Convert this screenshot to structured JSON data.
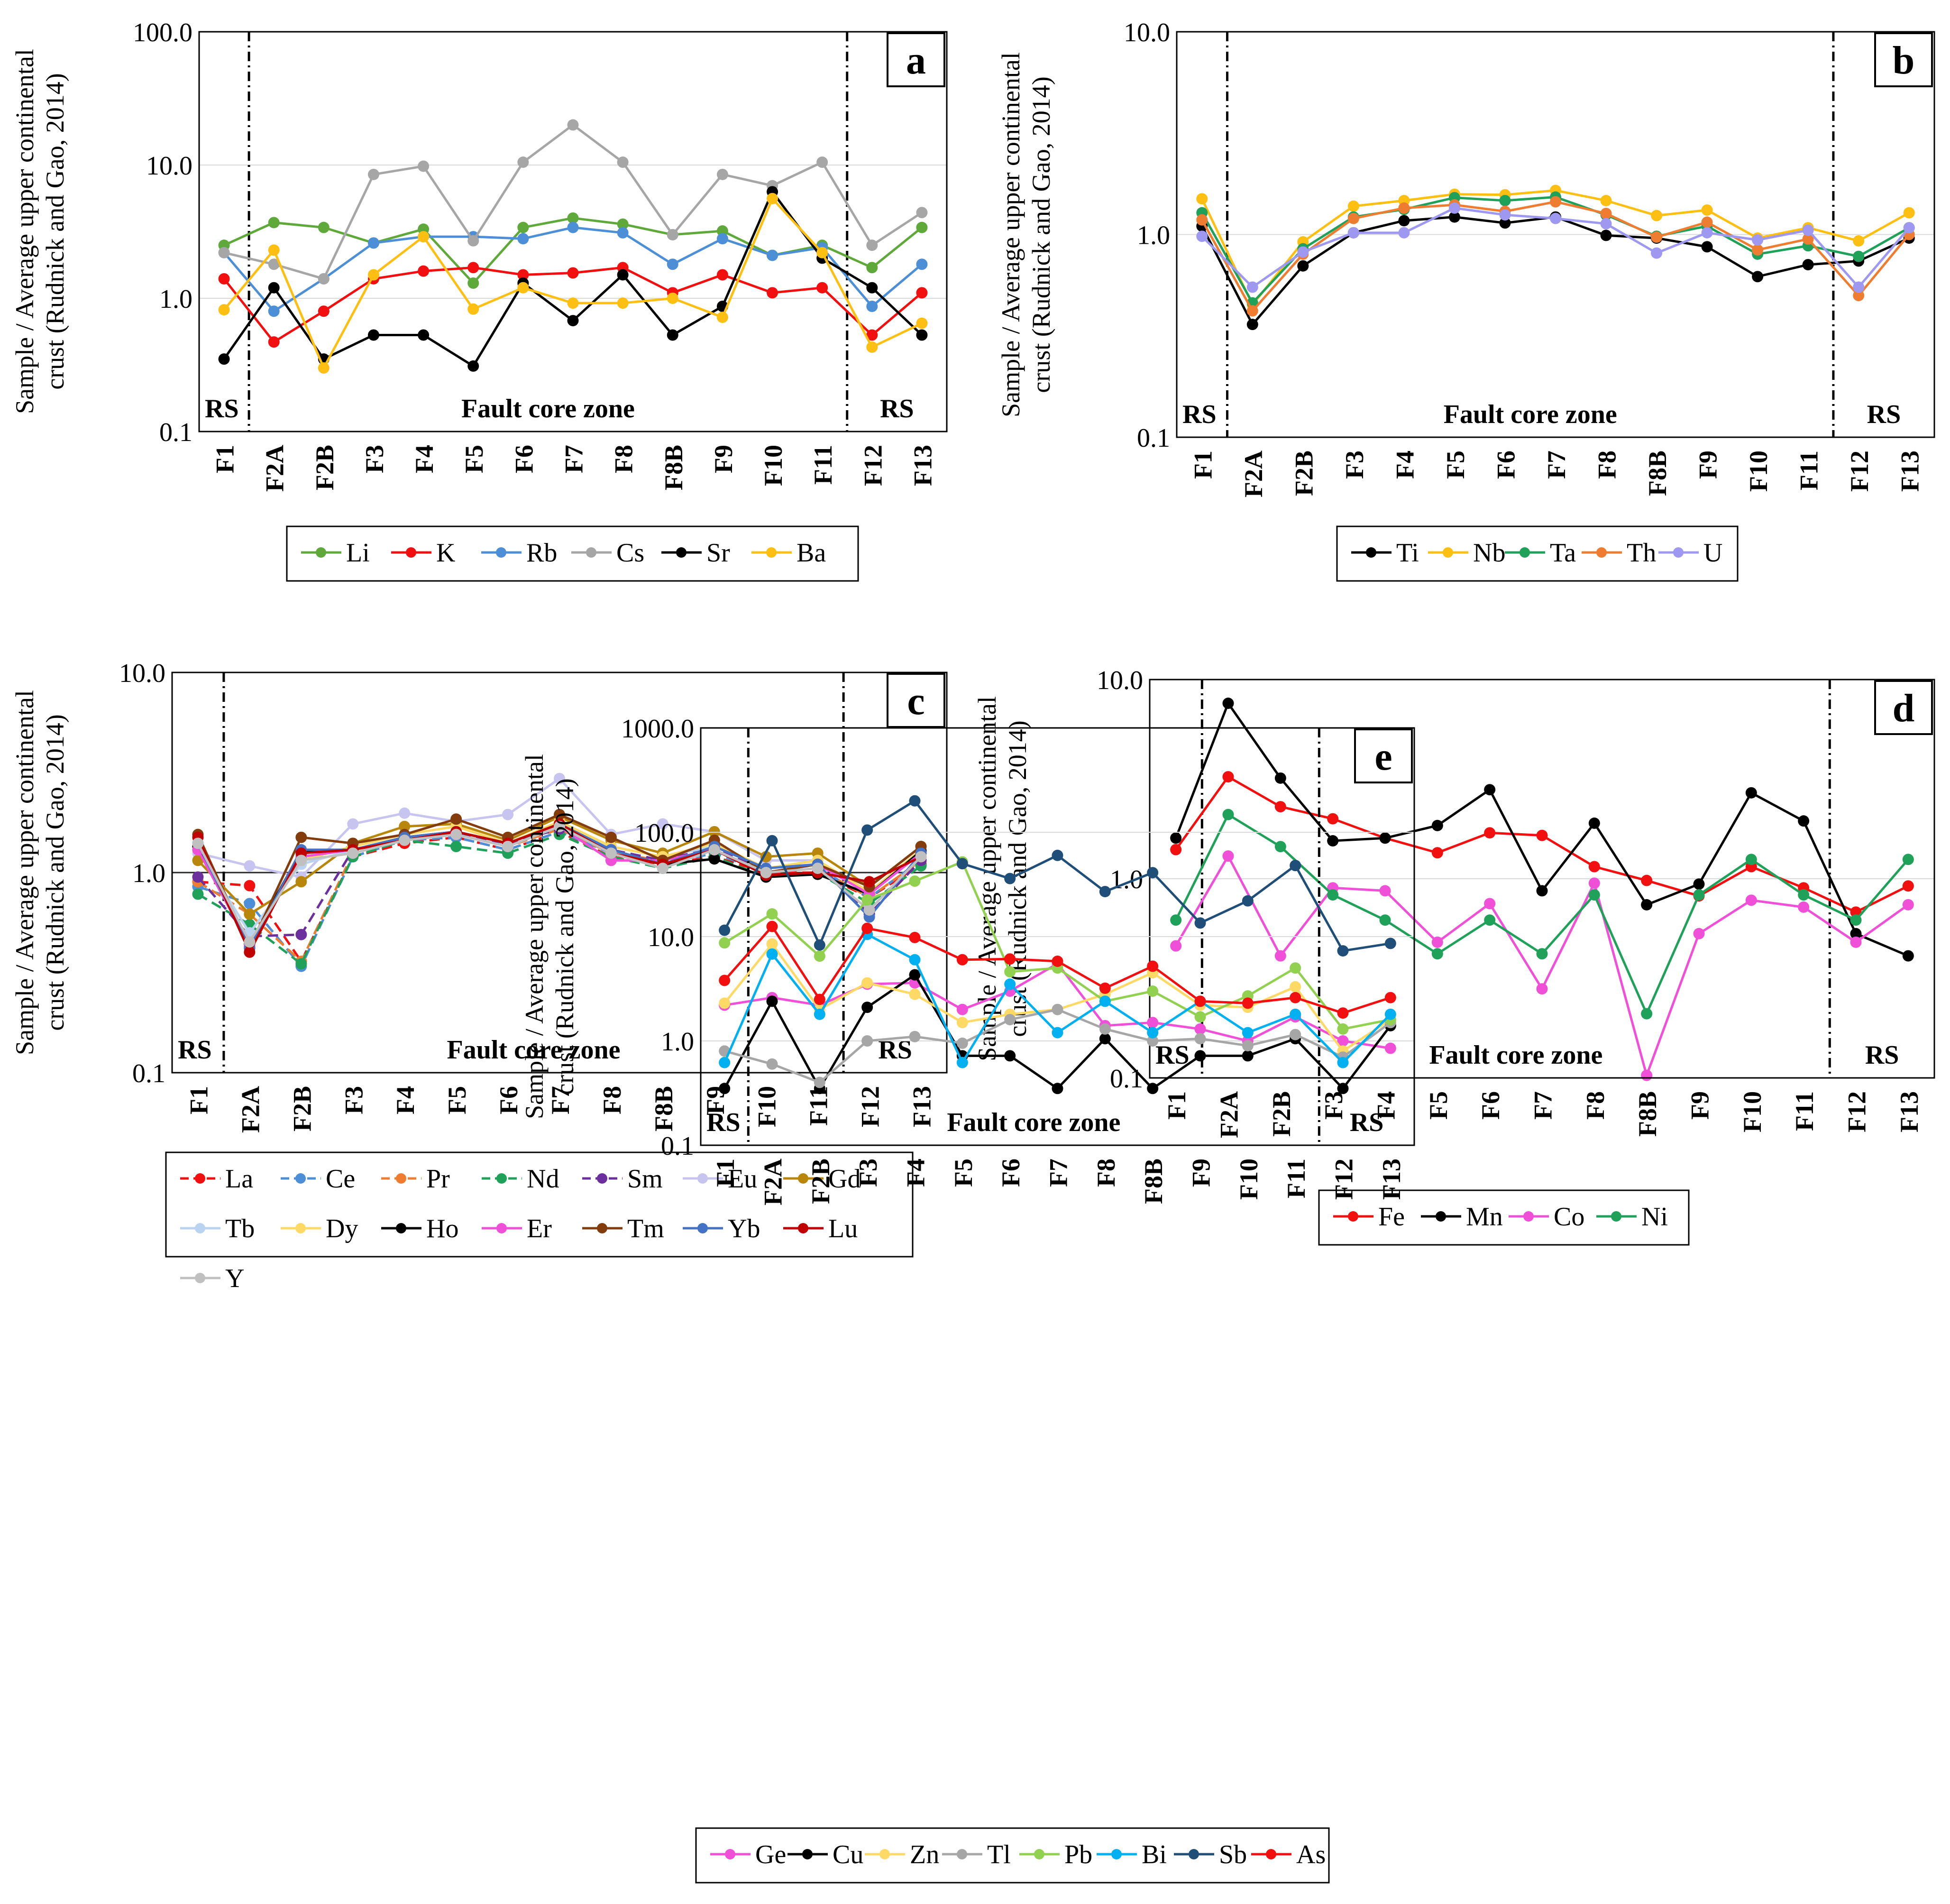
{
  "figure": {
    "ylabel_line1": "Sample / Average upper continental",
    "ylabel_line2": "crust (Rudnick and Gao, 2014)",
    "zone_left": "RS",
    "zone_middle": "Fault core zone",
    "zone_right": "RS"
  },
  "chart_data": [
    {
      "id": "a",
      "panel_label": "a",
      "type": "line",
      "scale": "log",
      "ylim": [
        0.1,
        100
      ],
      "ytick_labels": [
        "0.1",
        "1.0",
        "10.0",
        "100.0"
      ],
      "categories": [
        "F1",
        "F2A",
        "F2B",
        "F3",
        "F4",
        "F5",
        "F6",
        "F7",
        "F8",
        "F8B",
        "F9",
        "F10",
        "F11",
        "F12",
        "F13"
      ],
      "separators_after": [
        "F1",
        "F11"
      ],
      "series": [
        {
          "name": "Li",
          "color": "#5fa83a",
          "values": [
            2.5,
            3.7,
            3.4,
            2.6,
            3.3,
            1.3,
            3.4,
            4.0,
            3.6,
            3.0,
            3.2,
            2.1,
            2.5,
            1.7,
            3.4
          ]
        },
        {
          "name": "K",
          "color": "#f20f0f",
          "values": [
            1.4,
            0.47,
            0.8,
            1.4,
            1.6,
            1.7,
            1.5,
            1.55,
            1.7,
            1.1,
            1.5,
            1.1,
            1.2,
            0.53,
            1.1
          ]
        },
        {
          "name": "Rb",
          "color": "#4d8fd6",
          "values": [
            2.2,
            0.8,
            1.4,
            2.6,
            2.9,
            2.9,
            2.8,
            3.4,
            3.1,
            1.8,
            2.8,
            2.1,
            2.4,
            0.87,
            1.8
          ]
        },
        {
          "name": "Cs",
          "color": "#a6a6a6",
          "values": [
            2.2,
            1.8,
            1.4,
            8.5,
            9.8,
            2.7,
            10.5,
            20.0,
            10.5,
            3.0,
            8.5,
            7.0,
            10.5,
            2.5,
            4.4
          ]
        },
        {
          "name": "Sr",
          "color": "#000000",
          "values": [
            0.35,
            1.2,
            0.35,
            0.53,
            0.53,
            0.31,
            1.3,
            0.68,
            1.5,
            0.53,
            0.87,
            6.3,
            2.0,
            1.2,
            0.53
          ]
        },
        {
          "name": "Ba",
          "color": "#fdbf12",
          "values": [
            0.82,
            2.3,
            0.3,
            1.5,
            2.9,
            0.83,
            1.2,
            0.92,
            0.92,
            1.0,
            0.72,
            5.6,
            2.2,
            0.43,
            0.65
          ]
        }
      ]
    },
    {
      "id": "b",
      "panel_label": "b",
      "type": "line",
      "scale": "log",
      "ylim": [
        0.1,
        10
      ],
      "ytick_labels": [
        "0.1",
        "1.0",
        "10.0"
      ],
      "categories": [
        "F1",
        "F2A",
        "F2B",
        "F3",
        "F4",
        "F5",
        "F6",
        "F7",
        "F8",
        "F8B",
        "F9",
        "F10",
        "F11",
        "F12",
        "F13"
      ],
      "separators_after": [
        "F1",
        "F11"
      ],
      "series": [
        {
          "name": "Ti",
          "color": "#000000",
          "values": [
            1.1,
            0.36,
            0.7,
            1.02,
            1.17,
            1.22,
            1.14,
            1.22,
            0.99,
            0.96,
            0.87,
            0.62,
            0.71,
            0.74,
            0.96
          ]
        },
        {
          "name": "Nb",
          "color": "#fdbf12",
          "values": [
            1.5,
            0.45,
            0.92,
            1.38,
            1.47,
            1.58,
            1.57,
            1.65,
            1.47,
            1.24,
            1.32,
            0.96,
            1.08,
            0.93,
            1.28
          ]
        },
        {
          "name": "Ta",
          "color": "#1fa15a",
          "values": [
            1.28,
            0.46,
            0.85,
            1.22,
            1.33,
            1.52,
            1.47,
            1.53,
            1.25,
            0.98,
            1.1,
            0.8,
            0.88,
            0.78,
            1.08
          ]
        },
        {
          "name": "Th",
          "color": "#ee7d31",
          "values": [
            1.18,
            0.42,
            0.8,
            1.2,
            1.35,
            1.4,
            1.3,
            1.45,
            1.27,
            0.97,
            1.15,
            0.84,
            0.95,
            0.5,
            1.0
          ]
        },
        {
          "name": "U",
          "color": "#9f98f0",
          "values": [
            0.98,
            0.55,
            0.82,
            1.02,
            1.02,
            1.35,
            1.25,
            1.2,
            1.13,
            0.81,
            1.02,
            0.94,
            1.05,
            0.55,
            1.08
          ]
        }
      ]
    },
    {
      "id": "c",
      "panel_label": "c",
      "type": "line",
      "scale": "log",
      "ylim": [
        0.1,
        10
      ],
      "ytick_labels": [
        "0.1",
        "1.0",
        "10.0"
      ],
      "categories": [
        "F1",
        "F2A",
        "F2B",
        "F3",
        "F4",
        "F5",
        "F6",
        "F7",
        "F8",
        "F8B",
        "F9",
        "F10",
        "F11",
        "F12",
        "F13"
      ],
      "separators_after": [
        "F1",
        "F11"
      ],
      "series": [
        {
          "name": "La",
          "color": "#f20f0f",
          "dashed": true,
          "values": [
            0.9,
            0.86,
            0.36,
            1.2,
            1.4,
            1.5,
            1.3,
            1.6,
            1.2,
            1.1,
            1.2,
            1.0,
            1.0,
            0.75,
            1.1
          ]
        },
        {
          "name": "Ce",
          "color": "#4d8fd6",
          "dashed": true,
          "values": [
            0.85,
            0.7,
            0.34,
            1.2,
            1.45,
            1.5,
            1.3,
            1.6,
            1.25,
            1.1,
            1.25,
            1.0,
            1.05,
            0.75,
            1.15
          ]
        },
        {
          "name": "Pr",
          "color": "#ee7d31",
          "dashed": true,
          "values": [
            0.9,
            0.62,
            0.36,
            1.25,
            1.45,
            1.55,
            1.35,
            1.65,
            1.25,
            1.15,
            1.3,
            1.0,
            1.05,
            0.75,
            1.15
          ]
        },
        {
          "name": "Nd",
          "color": "#1fa15a",
          "dashed": true,
          "values": [
            0.78,
            0.55,
            0.35,
            1.2,
            1.45,
            1.35,
            1.25,
            1.55,
            1.2,
            1.05,
            1.2,
            0.95,
            1.0,
            0.7,
            1.08
          ]
        },
        {
          "name": "Sm",
          "color": "#6b2f9e",
          "dashed": true,
          "values": [
            0.95,
            0.48,
            0.49,
            1.3,
            1.5,
            1.55,
            1.4,
            1.65,
            1.3,
            1.15,
            1.35,
            1.0,
            1.1,
            0.62,
            1.15
          ]
        },
        {
          "name": "Eu",
          "color": "#c8c4f0",
          "values": [
            1.25,
            1.08,
            0.95,
            1.75,
            1.98,
            1.8,
            1.95,
            2.95,
            1.55,
            1.75,
            1.6,
            1.15,
            1.15,
            0.8,
            1.25
          ]
        },
        {
          "name": "Gd",
          "color": "#b8860b",
          "values": [
            1.15,
            0.62,
            0.9,
            1.4,
            1.7,
            1.75,
            1.45,
            1.9,
            1.45,
            1.25,
            1.6,
            1.2,
            1.25,
            0.85,
            1.35
          ]
        },
        {
          "name": "Tb",
          "color": "#b9d3f0",
          "values": [
            1.3,
            0.5,
            1.1,
            1.3,
            1.5,
            1.6,
            1.4,
            1.75,
            1.35,
            1.2,
            1.35,
            1.05,
            1.15,
            0.78,
            1.25
          ]
        },
        {
          "name": "Dy",
          "color": "#ffd966",
          "values": [
            1.35,
            0.45,
            1.15,
            1.35,
            1.55,
            1.7,
            1.4,
            1.8,
            1.35,
            1.2,
            1.4,
            1.05,
            1.15,
            0.8,
            1.3
          ]
        },
        {
          "name": "Ho",
          "color": "#000000",
          "values": [
            1.35,
            0.44,
            1.28,
            1.3,
            1.5,
            1.6,
            1.4,
            1.75,
            1.3,
            1.1,
            1.17,
            0.95,
            0.98,
            0.78,
            1.28
          ]
        },
        {
          "name": "Er",
          "color": "#f04fd8",
          "values": [
            1.3,
            0.43,
            1.2,
            1.3,
            1.45,
            1.55,
            1.35,
            1.7,
            1.15,
            1.15,
            1.3,
            1.0,
            1.1,
            0.78,
            1.25
          ]
        },
        {
          "name": "Tm",
          "color": "#843c0c",
          "values": [
            1.55,
            0.42,
            1.5,
            1.4,
            1.55,
            1.85,
            1.5,
            1.95,
            1.5,
            1.15,
            1.45,
            1.0,
            1.1,
            0.85,
            1.35
          ]
        },
        {
          "name": "Yb",
          "color": "#4472c4",
          "values": [
            1.4,
            0.42,
            1.3,
            1.3,
            1.5,
            1.6,
            1.4,
            1.75,
            1.3,
            1.1,
            1.35,
            1.05,
            1.1,
            0.6,
            1.25
          ]
        },
        {
          "name": "Lu",
          "color": "#c00000",
          "values": [
            1.5,
            0.4,
            1.25,
            1.3,
            1.45,
            1.6,
            1.4,
            1.75,
            1.25,
            1.1,
            1.3,
            0.97,
            1.0,
            0.9,
            1.2
          ]
        },
        {
          "name": "Y",
          "color": "#c0c0c0",
          "values": [
            1.4,
            0.45,
            1.15,
            1.25,
            1.45,
            1.55,
            1.35,
            1.7,
            1.25,
            1.05,
            1.3,
            1.0,
            1.05,
            0.65,
            1.2
          ]
        }
      ]
    },
    {
      "id": "d",
      "panel_label": "d",
      "type": "line",
      "scale": "log",
      "ylim": [
        0.1,
        10
      ],
      "ytick_labels": [
        "0.1",
        "1.0",
        "10.0"
      ],
      "categories": [
        "F1",
        "F2A",
        "F2B",
        "F3",
        "F4",
        "F5",
        "F6",
        "F7",
        "F8",
        "F8B",
        "F9",
        "F10",
        "F11",
        "F12",
        "F13"
      ],
      "separators_after": [
        "F1",
        "F11"
      ],
      "series": [
        {
          "name": "Fe",
          "color": "#f20f0f",
          "values": [
            1.4,
            3.25,
            2.3,
            2.0,
            1.6,
            1.35,
            1.7,
            1.65,
            1.15,
            0.98,
            0.82,
            1.15,
            0.9,
            0.68,
            0.92
          ]
        },
        {
          "name": "Mn",
          "color": "#000000",
          "values": [
            1.6,
            7.6,
            3.2,
            1.55,
            1.6,
            1.85,
            2.8,
            0.87,
            1.9,
            0.74,
            0.94,
            2.7,
            1.95,
            0.53,
            0.41
          ]
        },
        {
          "name": "Co",
          "color": "#f04fd8",
          "values": [
            0.46,
            1.3,
            0.41,
            0.9,
            0.87,
            0.48,
            0.75,
            0.28,
            0.95,
            0.103,
            0.53,
            0.78,
            0.72,
            0.48,
            0.74
          ]
        },
        {
          "name": "Ni",
          "color": "#1fa15a",
          "values": [
            0.62,
            2.1,
            1.45,
            0.83,
            0.62,
            0.42,
            0.62,
            0.42,
            0.83,
            0.21,
            0.83,
            1.25,
            0.83,
            0.62,
            1.25
          ]
        }
      ]
    },
    {
      "id": "e",
      "panel_label": "e",
      "type": "line",
      "scale": "log",
      "ylim": [
        0.1,
        1000
      ],
      "ytick_labels": [
        "0.1",
        "1.0",
        "10.0",
        "100.0",
        "1000.0"
      ],
      "categories": [
        "F1",
        "F2A",
        "F2B",
        "F3",
        "F4",
        "F5",
        "F6",
        "F7",
        "F8",
        "F8B",
        "F9",
        "F10",
        "F11",
        "F12",
        "F13"
      ],
      "separators_after": [
        "F1",
        "F11"
      ],
      "series": [
        {
          "name": "Ge",
          "color": "#f04fd8",
          "values": [
            2.2,
            2.6,
            2.2,
            3.5,
            3.6,
            2.0,
            3.0,
            5.5,
            1.4,
            1.5,
            1.3,
            1.0,
            1.7,
            1.0,
            0.85
          ]
        },
        {
          "name": "Cu",
          "color": "#000000",
          "values": [
            0.35,
            2.4,
            0.35,
            2.1,
            4.3,
            0.72,
            0.72,
            0.35,
            1.05,
            0.35,
            0.72,
            0.72,
            1.05,
            0.35,
            1.4
          ]
        },
        {
          "name": "Zn",
          "color": "#ffd966",
          "values": [
            2.3,
            8.5,
            2.0,
            3.6,
            2.8,
            1.5,
            1.8,
            2.0,
            2.8,
            4.5,
            2.2,
            2.1,
            3.3,
            0.8,
            1.6
          ]
        },
        {
          "name": "Tl",
          "color": "#a6a6a6",
          "values": [
            0.8,
            0.6,
            0.4,
            1.0,
            1.1,
            0.95,
            1.6,
            2.0,
            1.3,
            1.0,
            1.05,
            0.9,
            1.15,
            0.7,
            1.5
          ]
        },
        {
          "name": "Pb",
          "color": "#92d050",
          "values": [
            8.7,
            16.5,
            6.5,
            22.5,
            34.0,
            52.0,
            4.6,
            5.0,
            2.4,
            3.0,
            1.7,
            2.7,
            5.0,
            1.3,
            1.6
          ]
        },
        {
          "name": "Bi",
          "color": "#00b0f0",
          "values": [
            0.62,
            6.8,
            1.8,
            10.5,
            6.0,
            0.62,
            3.5,
            1.2,
            2.4,
            1.2,
            2.4,
            1.2,
            1.8,
            0.62,
            1.8
          ]
        },
        {
          "name": "Sb",
          "color": "#1f4e79",
          "values": [
            11.5,
            83.0,
            8.3,
            105.0,
            200.0,
            50.0,
            36.0,
            60.0,
            27.0,
            41.0,
            13.5,
            22.0,
            48.0,
            7.3,
            8.6
          ]
        },
        {
          "name": "As",
          "color": "#f20f0f",
          "values": [
            3.8,
            12.5,
            2.5,
            12.0,
            9.8,
            6.0,
            6.1,
            5.8,
            3.2,
            5.2,
            2.4,
            2.3,
            2.6,
            1.85,
            2.6
          ]
        }
      ]
    }
  ]
}
